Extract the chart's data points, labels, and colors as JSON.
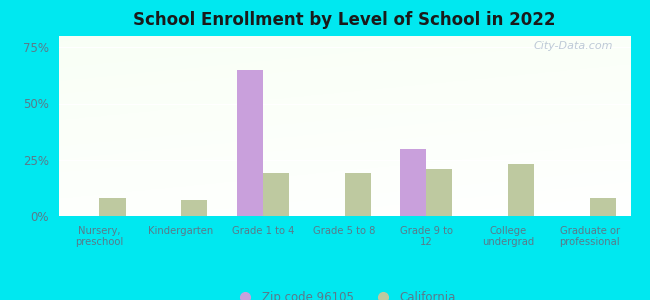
{
  "title": "School Enrollment by Level of School in 2022",
  "categories": [
    "Nursery,\npreschool",
    "Kindergarten",
    "Grade 1 to 4",
    "Grade 5 to 8",
    "Grade 9 to\n12",
    "College\nundergrad",
    "Graduate or\nprofessional"
  ],
  "zip_values": [
    0,
    0,
    65,
    0,
    30,
    0,
    0
  ],
  "ca_values": [
    8,
    7,
    19,
    19,
    21,
    23,
    8
  ],
  "zip_color": "#c9a0dc",
  "ca_color": "#bec9a0",
  "yticks": [
    0,
    25,
    50,
    75
  ],
  "ytick_labels": [
    "0%",
    "25%",
    "50%",
    "75%"
  ],
  "ylim": [
    0,
    80
  ],
  "zip_label": "Zip code 96105",
  "ca_label": "California",
  "bg_outer": "#00e8f0",
  "watermark": "City-Data.com",
  "bar_width": 0.32,
  "tick_color": "#5a7a8a",
  "title_color": "#1a1a1a"
}
